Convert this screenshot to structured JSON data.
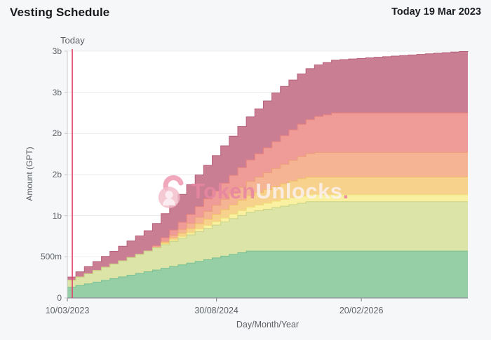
{
  "header": {
    "title": "Vesting Schedule",
    "today_date": "Today 19 Mar 2023"
  },
  "watermark": {
    "brand_first": "Token",
    "brand_second": "Unlocks",
    "brand_dot": "."
  },
  "chart_data": {
    "type": "area",
    "stacked": true,
    "step": true,
    "title": "Vesting Schedule",
    "xlabel": "Day/Month/Year",
    "ylabel": "Amount (GPT)",
    "ylim": [
      0,
      3000
    ],
    "y_unit": "millions of GPT",
    "x_unit": "month index from 10/03/2023",
    "n_points": 48,
    "x": [
      0,
      1,
      2,
      3,
      4,
      5,
      6,
      7,
      8,
      9,
      10,
      11,
      12,
      13,
      14,
      15,
      16,
      17,
      18,
      19,
      20,
      21,
      22,
      23,
      24,
      25,
      26,
      27,
      28,
      29,
      30,
      31,
      32,
      33,
      34,
      35,
      36,
      37,
      38,
      39,
      40,
      41,
      42,
      43,
      44,
      45,
      46,
      47
    ],
    "xticks": [
      {
        "label": "10/03/2023",
        "month": 0
      },
      {
        "label": "30/08/2024",
        "month": 17.5
      },
      {
        "label": "20/02/2026",
        "month": 34.5
      }
    ],
    "yticks": [
      {
        "label": "3b",
        "value": 3000
      },
      {
        "label": "3b",
        "value": 2500
      },
      {
        "label": "2b",
        "value": 2000
      },
      {
        "label": "2b",
        "value": 1500
      },
      {
        "label": "1b",
        "value": 1000
      },
      {
        "label": "500m",
        "value": 500
      },
      {
        "label": "0",
        "value": 0
      }
    ],
    "today": {
      "label": "Today",
      "month": 0.58,
      "line_color": "#e23f68"
    },
    "grid_color": "#ebebed",
    "axis_color": "#8c9096",
    "yaxis_line_color": "#c6c9cd",
    "plot_bg": "#ffffff",
    "series": [
      {
        "name": "green",
        "color": "#96cfa6",
        "edge": "#79c193",
        "values": [
          130,
          151,
          172,
          193,
          214,
          235,
          256,
          277,
          298,
          319,
          340,
          361,
          382,
          403,
          424,
          445,
          466,
          487,
          508,
          529,
          550,
          570,
          570,
          570,
          570,
          570,
          570,
          570,
          570,
          570,
          570,
          570,
          570,
          570,
          570,
          570,
          570,
          570,
          570,
          570,
          570,
          570,
          570,
          570,
          570,
          570,
          570,
          570
        ]
      },
      {
        "name": "yellow-green",
        "color": "#dce4a8",
        "edge": "#c8d287",
        "values": [
          85,
          103,
          122,
          140,
          159,
          177,
          195,
          214,
          232,
          251,
          269,
          287,
          306,
          324,
          343,
          361,
          379,
          398,
          416,
          435,
          453,
          471,
          490,
          508,
          527,
          545,
          563,
          582,
          600,
          600,
          600,
          600,
          600,
          600,
          600,
          600,
          600,
          600,
          600,
          600,
          600,
          600,
          600,
          600,
          600,
          600,
          600,
          600
        ]
      },
      {
        "name": "yellow",
        "color": "#f9f0a1",
        "edge": "#f0df76",
        "values": [
          0,
          0,
          0,
          0,
          0,
          0,
          0,
          0,
          0,
          0,
          5,
          11,
          16,
          21,
          26,
          32,
          37,
          42,
          48,
          53,
          58,
          63,
          69,
          74,
          79,
          84,
          85,
          85,
          85,
          85,
          85,
          85,
          85,
          85,
          85,
          85,
          85,
          85,
          85,
          85,
          85,
          85,
          85,
          85,
          85,
          85,
          85,
          85
        ]
      },
      {
        "name": "amber",
        "color": "#f7d28c",
        "edge": "#f1bf65",
        "values": [
          0,
          0,
          0,
          0,
          0,
          0,
          0,
          0,
          0,
          0,
          0,
          13,
          25,
          38,
          50,
          63,
          76,
          88,
          101,
          113,
          126,
          139,
          151,
          164,
          176,
          189,
          202,
          214,
          215,
          215,
          215,
          215,
          215,
          215,
          215,
          215,
          215,
          215,
          215,
          215,
          215,
          215,
          215,
          215,
          215,
          215,
          215,
          215
        ]
      },
      {
        "name": "peach",
        "color": "#f5b494",
        "edge": "#eda076",
        "values": [
          0,
          0,
          0,
          0,
          0,
          0,
          0,
          0,
          0,
          0,
          0,
          16,
          32,
          47,
          63,
          79,
          95,
          111,
          126,
          142,
          158,
          174,
          190,
          205,
          221,
          237,
          253,
          268,
          284,
          300,
          300,
          300,
          300,
          300,
          300,
          300,
          300,
          300,
          300,
          300,
          300,
          300,
          300,
          300,
          300,
          300,
          300,
          300
        ]
      },
      {
        "name": "salmon",
        "color": "#ef9b98",
        "edge": "#e7827e",
        "values": [
          0,
          0,
          0,
          0,
          0,
          0,
          0,
          0,
          0,
          0,
          22,
          44,
          65,
          87,
          109,
          131,
          152,
          174,
          196,
          218,
          240,
          261,
          283,
          305,
          327,
          348,
          370,
          392,
          414,
          436,
          457,
          479,
          480,
          480,
          480,
          480,
          480,
          480,
          480,
          480,
          480,
          480,
          480,
          480,
          480,
          480,
          480,
          480
        ]
      },
      {
        "name": "mauve",
        "color": "#ca7e93",
        "edge": "#b5607b",
        "values": [
          40,
          63,
          86,
          109,
          132,
          155,
          178,
          201,
          224,
          247,
          270,
          293,
          316,
          339,
          362,
          385,
          408,
          431,
          454,
          477,
          500,
          523,
          546,
          569,
          592,
          599,
          606,
          613,
          620,
          627,
          634,
          641,
          648,
          655,
          662,
          669,
          676,
          683,
          690,
          697,
          704,
          711,
          718,
          725,
          732,
          739,
          746,
          750
        ]
      }
    ]
  }
}
